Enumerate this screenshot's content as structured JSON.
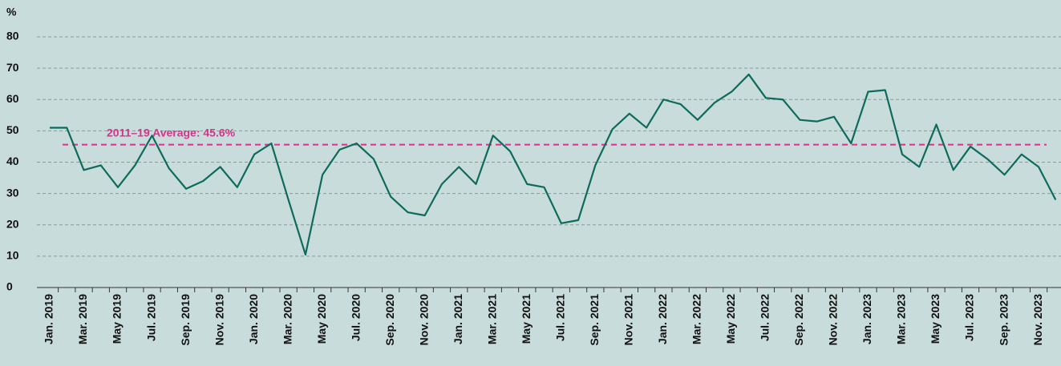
{
  "chart_data": {
    "type": "line",
    "y_label": "%",
    "annotation": "2011–19 Average: 45.6%",
    "reference_line": {
      "value": 45.6,
      "color": "#d6338a"
    },
    "categories": [
      "Jan. 2019",
      null,
      "Mar. 2019",
      null,
      "May 2019",
      null,
      "Jul. 2019",
      null,
      "Sep. 2019",
      null,
      "Nov. 2019",
      null,
      "Jan. 2020",
      null,
      "Mar. 2020",
      null,
      "May 2020",
      null,
      "Jul. 2020",
      null,
      "Sep. 2020",
      null,
      "Nov. 2020",
      null,
      "Jan. 2021",
      null,
      "Mar. 2021",
      null,
      "May 2021",
      null,
      "Jul. 2021",
      null,
      "Sep. 2021",
      null,
      "Nov. 2021",
      null,
      "Jan. 2022",
      null,
      "Mar. 2022",
      null,
      "May 2022",
      null,
      "Jul. 2022",
      null,
      "Sep. 2022",
      null,
      "Nov. 2022",
      null,
      "Jan. 2023",
      null,
      "Mar. 2023",
      null,
      "May 2023",
      null,
      "Jul. 2023",
      null,
      "Sep. 2023",
      null,
      "Nov. 2023",
      null
    ],
    "series": [
      {
        "color": "#0e6b5c",
        "values": [
          51,
          51,
          37.5,
          39,
          32,
          39,
          48.5,
          38,
          31.5,
          34,
          38.5,
          32,
          42.5,
          46,
          28,
          10.5,
          36,
          44,
          46,
          41,
          29,
          24,
          23,
          33,
          38.5,
          33,
          48.5,
          43.5,
          33,
          32,
          20.5,
          21.5,
          39,
          50.5,
          55.5,
          51,
          60,
          58.5,
          53.5,
          59,
          62.5,
          68,
          60.5,
          60,
          53.5,
          53,
          54.5,
          46,
          62.5,
          63,
          42.5,
          38.5,
          52,
          37.5,
          45,
          41,
          36,
          42.5,
          38.5,
          28
        ]
      }
    ],
    "ylim": [
      0,
      80
    ],
    "yticks": [
      0,
      10,
      20,
      30,
      40,
      50,
      60,
      70,
      80
    ],
    "grid": true
  }
}
